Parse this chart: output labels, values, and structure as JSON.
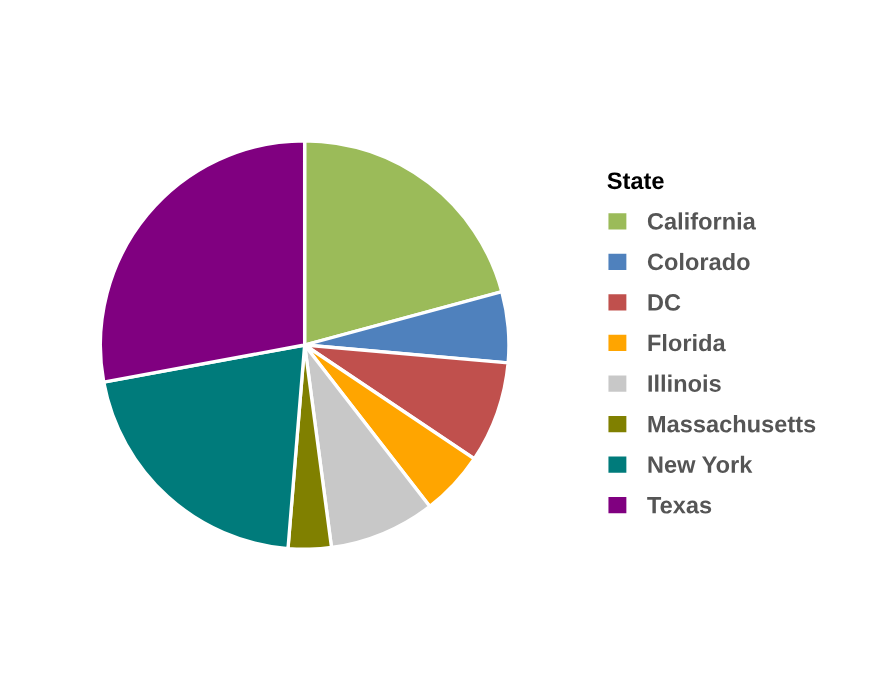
{
  "chart_data": {
    "type": "pie",
    "legend_title": "State",
    "legend": "right",
    "categories": [
      "California",
      "Colorado",
      "DC",
      "Florida",
      "Illinois",
      "Massachusetts",
      "New York",
      "Texas"
    ],
    "values": [
      20.8,
      5.6,
      8,
      5.1,
      8.4,
      3.4,
      20.8,
      27.9
    ],
    "colors": [
      "#9bbb59",
      "#4f81bd",
      "#c0504d",
      "#ffa500",
      "#c8c8c8",
      "#808000",
      "#007b7b",
      "#800080"
    ]
  }
}
